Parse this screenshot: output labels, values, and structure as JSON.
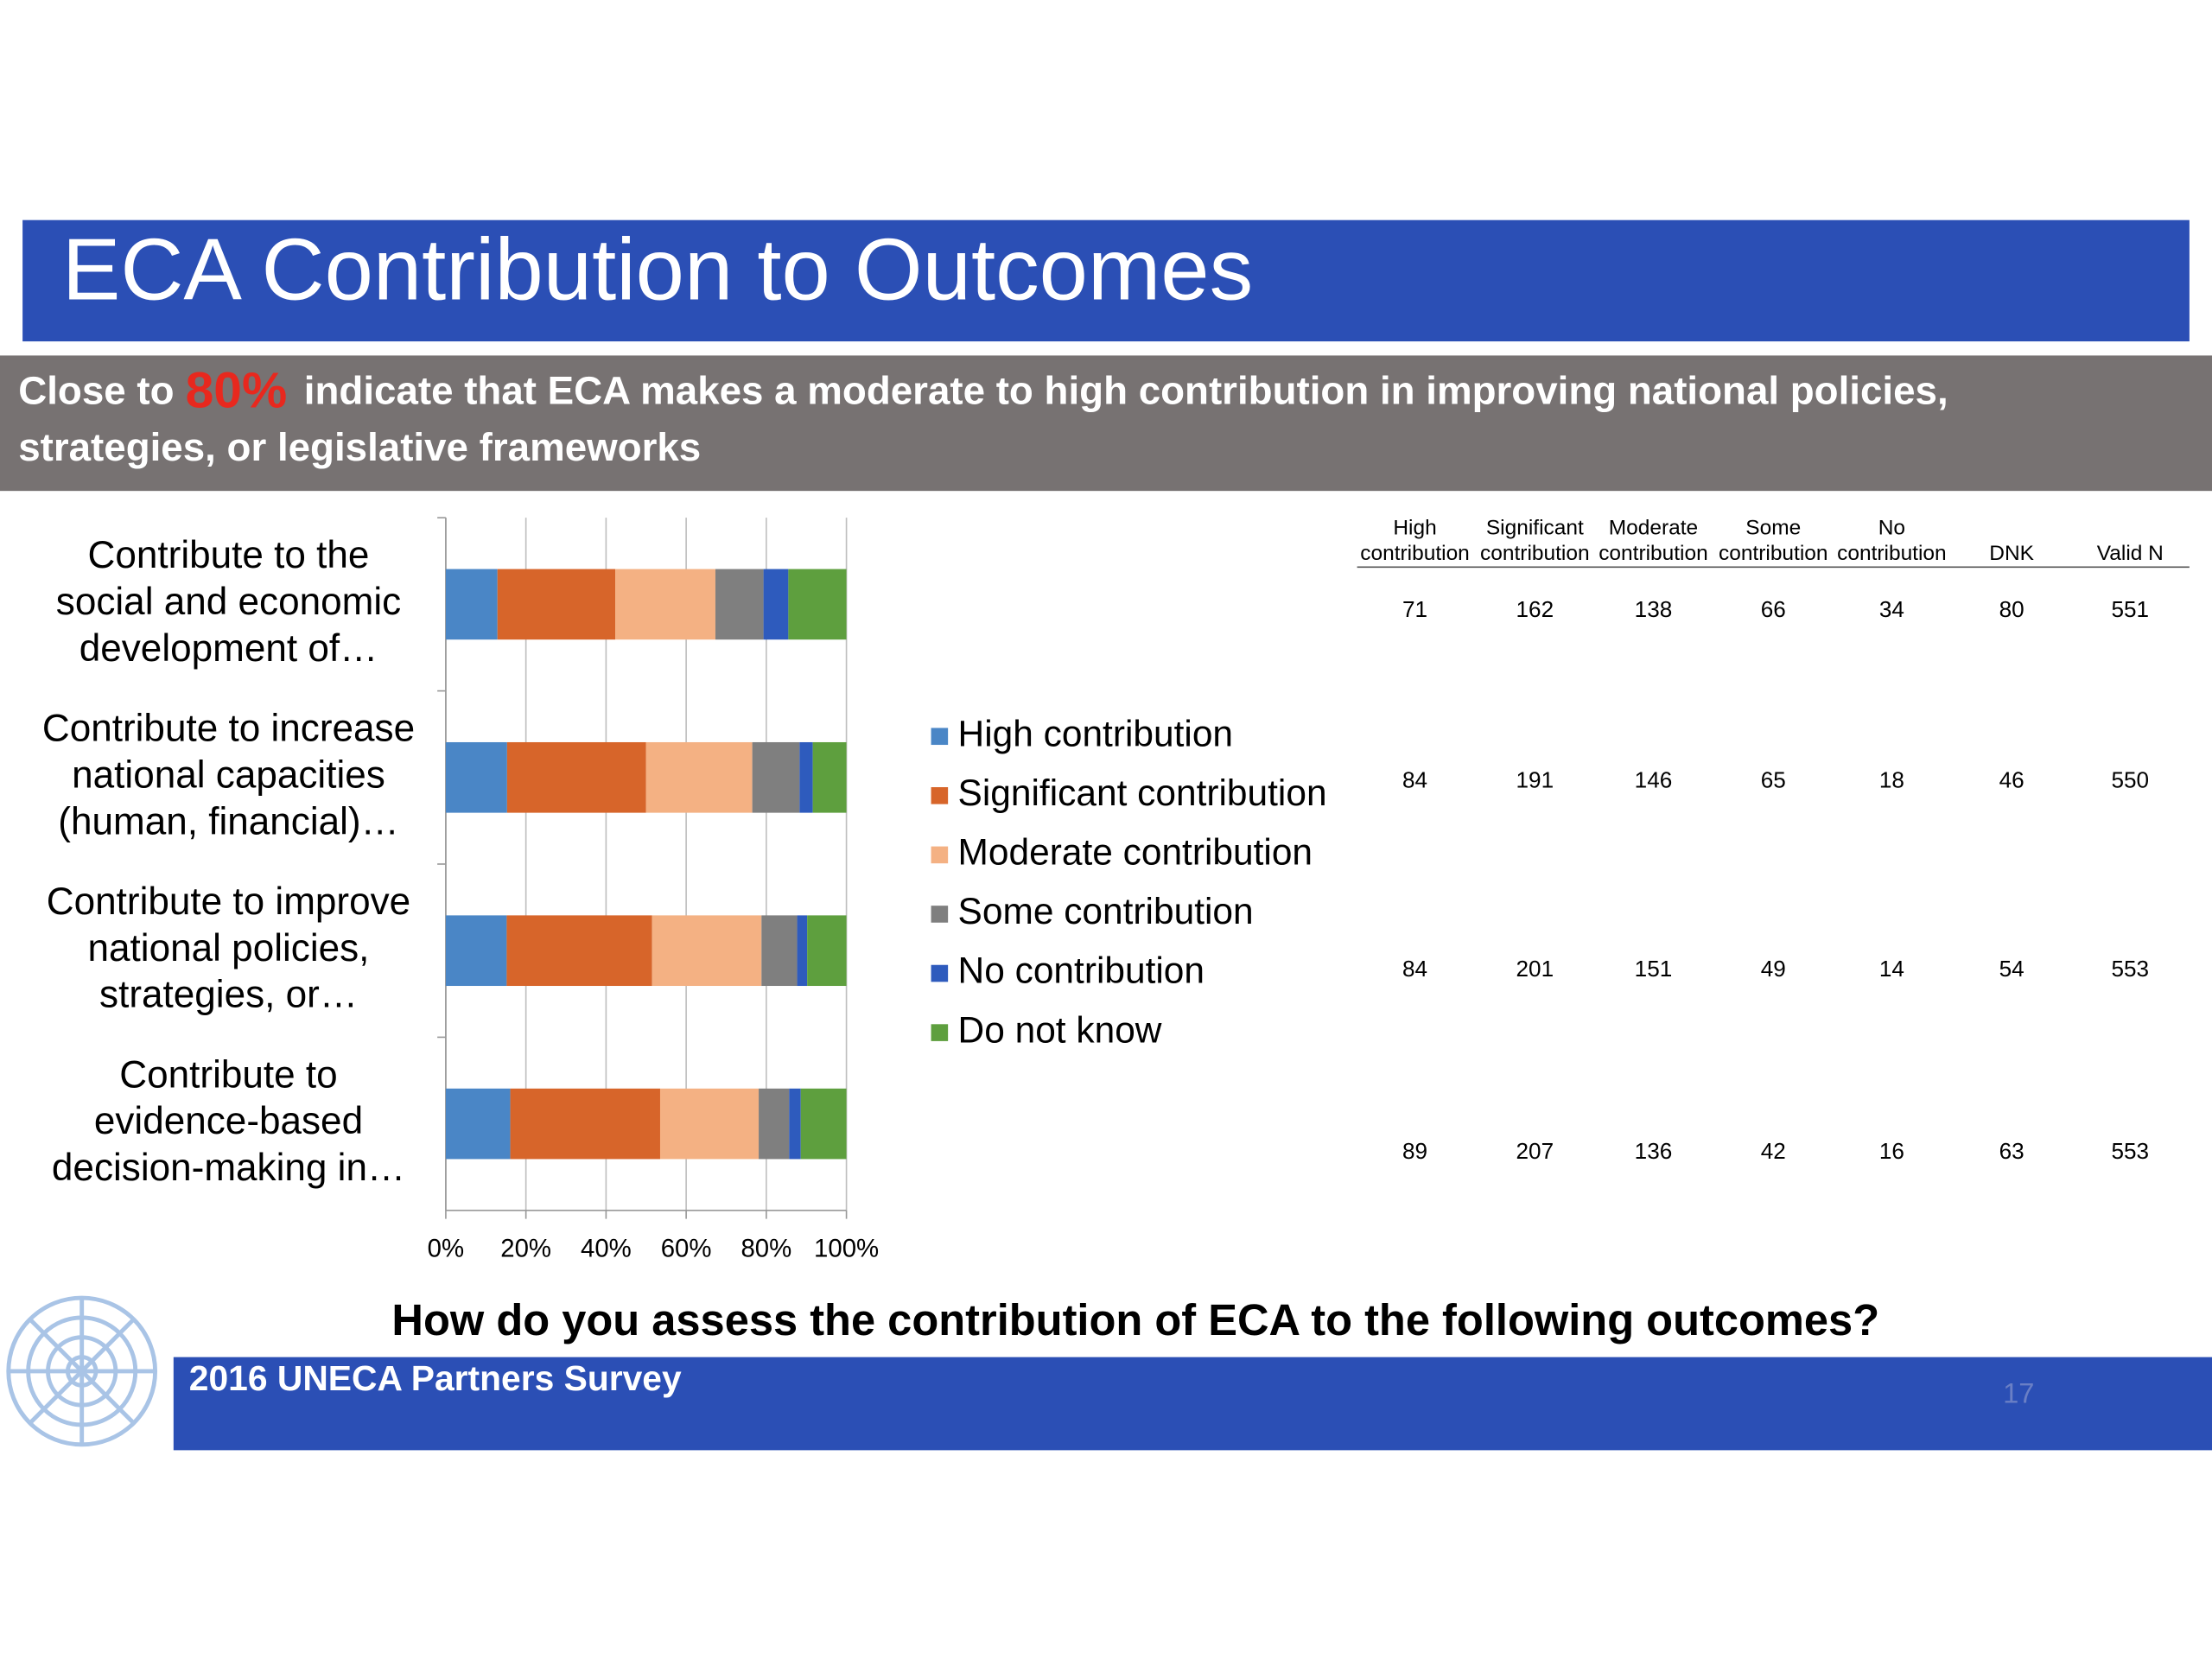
{
  "title": "ECA Contribution to Outcomes",
  "subtitle": {
    "before": "Close to",
    "highlight": "80%",
    "after": [
      "indicate that ECA makes a moderate to high contribution in improving national policies,",
      "strategies, or legislative frameworks"
    ]
  },
  "chart_data": {
    "type": "stacked-barh",
    "categories": [
      [
        "Contribute to the",
        "social and economic",
        "development of…"
      ],
      [
        "Contribute to increase",
        "national capacities",
        "(human, financial)…"
      ],
      [
        "Contribute to improve",
        "national policies,",
        "strategies, or…"
      ],
      [
        "Contribute to",
        "evidence-based",
        "decision-making in…"
      ]
    ],
    "series": [
      {
        "name": "High contribution",
        "color": "#4a86c6",
        "values": [
          12.9,
          15.3,
          15.2,
          16.1
        ]
      },
      {
        "name": "Significant contribution",
        "color": "#d7652a",
        "values": [
          29.4,
          34.7,
          36.3,
          37.4
        ]
      },
      {
        "name": "Moderate contribution",
        "color": "#f4b183",
        "values": [
          25.0,
          26.5,
          27.3,
          24.6
        ]
      },
      {
        "name": "Some contribution",
        "color": "#7f7f7f",
        "values": [
          12.0,
          11.8,
          8.9,
          7.6
        ]
      },
      {
        "name": "No contribution",
        "color": "#2e5bbd",
        "values": [
          6.2,
          3.3,
          2.5,
          2.9
        ]
      },
      {
        "name": "Do not know",
        "color": "#5e9f3e",
        "values": [
          14.5,
          8.4,
          9.8,
          11.4
        ]
      }
    ],
    "xlim": [
      0,
      100
    ],
    "xticks": [
      {
        "value": 0,
        "label": "0%"
      },
      {
        "value": 20,
        "label": "20%"
      },
      {
        "value": 40,
        "label": "40%"
      },
      {
        "value": 60,
        "label": "60%"
      },
      {
        "value": 80,
        "label": "80%"
      },
      {
        "value": 100,
        "label": "100%"
      }
    ],
    "grid": true
  },
  "table": {
    "columns": [
      [
        "High",
        "contribution"
      ],
      [
        "Significant",
        "contribution"
      ],
      [
        "Moderate",
        "contribution"
      ],
      [
        "Some",
        "contribution"
      ],
      [
        "No",
        "contribution"
      ],
      [
        "DNK"
      ],
      [
        "Valid N"
      ]
    ],
    "rows": [
      [
        71,
        162,
        138,
        66,
        34,
        80,
        551
      ],
      [
        84,
        191,
        146,
        65,
        18,
        46,
        550
      ],
      [
        84,
        201,
        151,
        49,
        14,
        54,
        553
      ],
      [
        89,
        207,
        136,
        42,
        16,
        63,
        553
      ]
    ]
  },
  "question": "How do you assess the contribution of ECA to the following outcomes?",
  "footer": "2016 UNECA Partners Survey",
  "page_number": "17"
}
